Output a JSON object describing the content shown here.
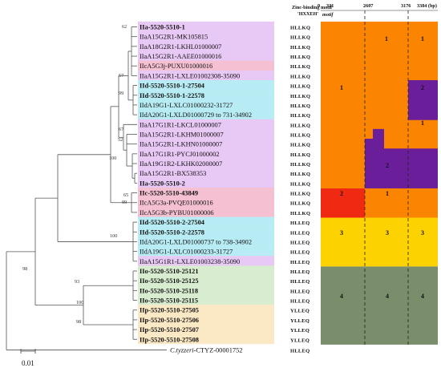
{
  "header": {
    "motif_title_line1": "Zinc-binding motif",
    "motif_title_line2": "'HXXEH'",
    "positions": [
      "0",
      "321",
      "2607",
      "3176",
      "3384 (bp)"
    ],
    "motif_label": "motif"
  },
  "taxa": [
    {
      "label": "IIa-5520-5510-1",
      "bold": true,
      "group": "IIa",
      "motif": "HLLKQ"
    },
    {
      "label": "IIaA15G2R1-MK105815",
      "bold": false,
      "group": "IIa",
      "motif": "HLLKQ"
    },
    {
      "label": "IIaA18G2R1-LKHL01000007",
      "bold": false,
      "group": "IIa",
      "motif": "HLLKQ"
    },
    {
      "label": "IIaA15G2R1-AAEE01000016",
      "bold": false,
      "group": "IIa",
      "motif": "HLLKQ"
    },
    {
      "label": "IIcA5G3j-PUXU01000016",
      "bold": false,
      "group": "IIc",
      "motif": "HLLKQ"
    },
    {
      "label": "IIaA15G2R1-LXLE01002308-35090",
      "bold": false,
      "group": "IIa",
      "motif": "HLLKQ"
    },
    {
      "label": "IId-5520-5510-1-27504",
      "bold": true,
      "group": "IId",
      "motif": "HLLKQ"
    },
    {
      "label": "IId-5520-5510-1-22578",
      "bold": true,
      "group": "IId",
      "motif": "HLLKQ"
    },
    {
      "label": "IIdA19G1-LXLC01000232-31727",
      "bold": false,
      "group": "IId",
      "motif": "HLLKQ"
    },
    {
      "label": "IIdA20G1-LXLD01000729 to 731-34902",
      "bold": false,
      "group": "IId",
      "motif": "HLLKQ"
    },
    {
      "label": "IIaA17G1R1-LKCL01000007",
      "bold": false,
      "group": "IIa",
      "motif": "HLLKQ"
    },
    {
      "label": "IIaA15G2R1-LKHM01000007",
      "bold": false,
      "group": "IIa",
      "motif": "HLLKQ"
    },
    {
      "label": "IIaA15G2R1-LKHN01000007",
      "bold": false,
      "group": "IIa",
      "motif": "HLLKQ"
    },
    {
      "label": "IIaA17G1R1-PYCJ01000002",
      "bold": false,
      "group": "IIa",
      "motif": "HLLKQ"
    },
    {
      "label": "IIaA19G1R2-LKHK02000007",
      "bold": false,
      "group": "IIa",
      "motif": "HLLKQ"
    },
    {
      "label": "IIaA15G2R1-BX538353",
      "bold": false,
      "group": "IIa",
      "motif": "HLLKQ"
    },
    {
      "label": "IIa-5520-5510-2",
      "bold": true,
      "group": "IIa",
      "motif": "HLLKQ"
    },
    {
      "label": "IIc-5520-5510-43849",
      "bold": true,
      "group": "IIc",
      "motif": "HLLKQ"
    },
    {
      "label": "IIcA5G3a-PVQE01000016",
      "bold": false,
      "group": "IIc",
      "motif": "HLLKQ"
    },
    {
      "label": "IIcA5G3b-PYBU01000006",
      "bold": false,
      "group": "IIc",
      "motif": "HLLKQ"
    },
    {
      "label": "IId-5520-5510-2-27504",
      "bold": true,
      "group": "IId",
      "motif": "HLLEQ"
    },
    {
      "label": "IId-5520-5510-2-22578",
      "bold": true,
      "group": "IId",
      "motif": "HLLEQ"
    },
    {
      "label": "IIdA20G1-LXLD01000737 to 738-34902",
      "bold": false,
      "group": "IId",
      "motif": "HLLEQ"
    },
    {
      "label": "IIdA19G1-LXLC01000233-31727",
      "bold": false,
      "group": "IId",
      "motif": "HLLEQ"
    },
    {
      "label": "IIaA15G1R1-LXLE01003238-35090",
      "bold": false,
      "group": "IIa",
      "motif": "HLLEQ"
    },
    {
      "label": "IIo-5520-5510-25121",
      "bold": true,
      "group": "IIo",
      "motif": "HLLEQ"
    },
    {
      "label": "IIo-5520-5510-25125",
      "bold": true,
      "group": "IIo",
      "motif": "HLLEQ"
    },
    {
      "label": "IIo-5520-5510-25118",
      "bold": true,
      "group": "IIo",
      "motif": "HLLEQ"
    },
    {
      "label": "IIo-5520-5510-25115",
      "bold": true,
      "group": "IIo",
      "motif": "HLLEQ"
    },
    {
      "label": "IIp-5520-5510-27505",
      "bold": true,
      "group": "IIp",
      "motif": "YLLEQ"
    },
    {
      "label": "IIp-5520-5510-27506",
      "bold": true,
      "group": "IIp",
      "motif": "YLLEQ"
    },
    {
      "label": "IIp-5520-5510-27507",
      "bold": true,
      "group": "IIp",
      "motif": "YLLEQ"
    },
    {
      "label": "IIp-5520-5510-27508",
      "bold": true,
      "group": "IIp",
      "motif": "YLLEQ"
    }
  ],
  "outgroup": {
    "prefix": "C.tyzzeri",
    "suffix": "-CTYZ-00001752",
    "motif": "HLLEQ"
  },
  "bootstrap": [
    "62",
    "57",
    "99",
    "67",
    "52",
    "65",
    "100",
    "99",
    "100",
    "98",
    "93",
    "100",
    "98"
  ],
  "segment_labels": [
    "1",
    "1",
    "1",
    "2",
    "1",
    "2",
    "2",
    "1",
    "3",
    "3",
    "3",
    "4",
    "4",
    "4"
  ],
  "scale_bar": {
    "label": "0.01"
  },
  "colors": {
    "IIa": "#e8c8f4",
    "IIc": "#f4c0d2",
    "IId": "#b8ecf4",
    "IIo": "#d8ecd0",
    "IIp": "#fbe8c4",
    "orange": "#fb8500",
    "purple": "#6a1e9a",
    "red": "#f02a12",
    "yellow": "#fcd200",
    "green": "#7b8e6b"
  }
}
